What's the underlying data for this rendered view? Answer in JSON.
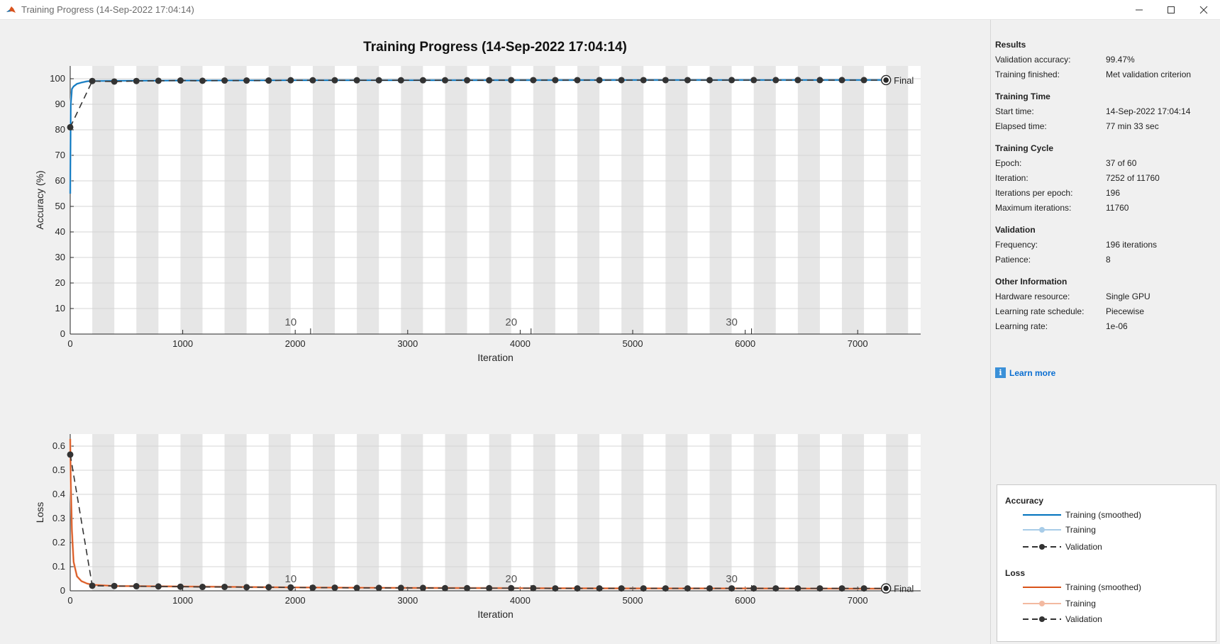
{
  "window": {
    "title": "Training Progress (14-Sep-2022 17:04:14)",
    "icon": "matlab-logo-icon"
  },
  "plot_title": "Training Progress (14-Sep-2022 17:04:14)",
  "results": {
    "heading": "Results",
    "rows": [
      {
        "label": "Validation accuracy:",
        "value": "99.47%"
      },
      {
        "label": "Training finished:",
        "value": "Met validation criterion"
      }
    ]
  },
  "training_time": {
    "heading": "Training Time",
    "rows": [
      {
        "label": "Start time:",
        "value": "14-Sep-2022 17:04:14"
      },
      {
        "label": "Elapsed time:",
        "value": "77 min 33 sec"
      }
    ]
  },
  "training_cycle": {
    "heading": "Training Cycle",
    "rows": [
      {
        "label": "Epoch:",
        "value": "37 of 60"
      },
      {
        "label": "Iteration:",
        "value": "7252 of 11760"
      },
      {
        "label": "Iterations per epoch:",
        "value": "196"
      },
      {
        "label": "Maximum iterations:",
        "value": "11760"
      }
    ]
  },
  "validation": {
    "heading": "Validation",
    "rows": [
      {
        "label": "Frequency:",
        "value": "196 iterations"
      },
      {
        "label": "Patience:",
        "value": "8"
      }
    ]
  },
  "other_info": {
    "heading": "Other Information",
    "rows": [
      {
        "label": "Hardware resource:",
        "value": "Single GPU"
      },
      {
        "label": "Learning rate schedule:",
        "value": "Piecewise"
      },
      {
        "label": "Learning rate:",
        "value": "1e-06"
      }
    ]
  },
  "learn_more": {
    "label": "Learn more",
    "icon": "info-icon"
  },
  "legend": {
    "accuracy": {
      "heading": "Accuracy",
      "items": [
        "Training (smoothed)",
        "Training",
        "Validation"
      ]
    },
    "loss": {
      "heading": "Loss",
      "items": [
        "Training (smoothed)",
        "Training",
        "Validation"
      ]
    }
  },
  "colors": {
    "accuracy_smoothed": "#0072bd",
    "accuracy_raw": "#a8cce8",
    "loss_smoothed": "#d95319",
    "loss_raw": "#f3b9a0",
    "validation": "#333333",
    "epoch_shade": "#e6e6e6"
  },
  "chart_data": [
    {
      "type": "line",
      "ylabel": "Accuracy (%)",
      "xlabel": "Iteration",
      "xlim": [
        0,
        7560
      ],
      "ylim": [
        0,
        105
      ],
      "xticks": [
        "0",
        "1000",
        "2000",
        "3000",
        "4000",
        "5000",
        "6000",
        "7000"
      ],
      "yticks": [
        "0",
        "10",
        "20",
        "30",
        "40",
        "50",
        "60",
        "70",
        "80",
        "90",
        "100"
      ],
      "epoch_labels": [
        "10",
        "20",
        "30"
      ],
      "iterations_per_epoch": 196,
      "final_label": "Final",
      "final": {
        "x": 7252,
        "y": 99.47
      },
      "series": [
        {
          "name": "Training (smoothed)",
          "x": [
            0,
            5,
            15,
            30,
            60,
            100,
            150,
            200,
            400,
            1000,
            2000,
            3000,
            4000,
            5000,
            6000,
            7000,
            7252
          ],
          "y": [
            55,
            90,
            96,
            97,
            98,
            98.5,
            99,
            99.1,
            99.2,
            99.3,
            99.4,
            99.4,
            99.45,
            99.5,
            99.5,
            99.5,
            99.5
          ]
        },
        {
          "name": "Validation",
          "x": [
            0,
            196,
            392,
            588,
            784,
            980,
            1176,
            1372,
            1568,
            1764,
            1960,
            2156,
            2352,
            2548,
            2744,
            2940,
            3136,
            3332,
            3528,
            3724,
            3920,
            4116,
            4312,
            4508,
            4704,
            4900,
            5096,
            5292,
            5488,
            5684,
            5880,
            6076,
            6272,
            6468,
            6664,
            6860,
            7056,
            7252
          ],
          "y": [
            81,
            99.1,
            98.9,
            99.1,
            99.2,
            99.3,
            99.2,
            99.3,
            99.3,
            99.3,
            99.4,
            99.4,
            99.4,
            99.4,
            99.4,
            99.4,
            99.4,
            99.4,
            99.4,
            99.4,
            99.45,
            99.45,
            99.45,
            99.45,
            99.45,
            99.45,
            99.45,
            99.45,
            99.45,
            99.45,
            99.47,
            99.47,
            99.47,
            99.47,
            99.47,
            99.47,
            99.47,
            99.47
          ]
        }
      ]
    },
    {
      "type": "line",
      "ylabel": "Loss",
      "xlabel": "Iteration",
      "xlim": [
        0,
        7560
      ],
      "ylim": [
        0,
        0.65
      ],
      "xticks": [
        "0",
        "1000",
        "2000",
        "3000",
        "4000",
        "5000",
        "6000",
        "7000"
      ],
      "yticks": [
        "0",
        "0.1",
        "0.2",
        "0.3",
        "0.4",
        "0.5",
        "0.6"
      ],
      "epoch_labels": [
        "10",
        "20",
        "30"
      ],
      "iterations_per_epoch": 196,
      "final_label": "Final",
      "final": {
        "x": 7252,
        "y": 0.01
      },
      "series": [
        {
          "name": "Training (smoothed)",
          "x": [
            0,
            5,
            15,
            30,
            60,
            100,
            150,
            200,
            400,
            1000,
            2000,
            3000,
            4000,
            5000,
            6000,
            7000,
            7252
          ],
          "y": [
            0.63,
            0.45,
            0.25,
            0.12,
            0.06,
            0.04,
            0.03,
            0.025,
            0.02,
            0.018,
            0.014,
            0.012,
            0.011,
            0.01,
            0.01,
            0.009,
            0.009
          ]
        },
        {
          "name": "Validation",
          "x": [
            0,
            196,
            392,
            588,
            784,
            980,
            1176,
            1372,
            1568,
            1764,
            1960,
            2156,
            2352,
            2548,
            2744,
            2940,
            3136,
            3332,
            3528,
            3724,
            3920,
            4116,
            4312,
            4508,
            4704,
            4900,
            5096,
            5292,
            5488,
            5684,
            5880,
            6076,
            6272,
            6468,
            6664,
            6860,
            7056,
            7252
          ],
          "y": [
            0.565,
            0.021,
            0.02,
            0.019,
            0.018,
            0.017,
            0.016,
            0.016,
            0.015,
            0.015,
            0.014,
            0.013,
            0.013,
            0.012,
            0.012,
            0.012,
            0.012,
            0.011,
            0.011,
            0.011,
            0.011,
            0.011,
            0.01,
            0.01,
            0.01,
            0.01,
            0.01,
            0.01,
            0.01,
            0.01,
            0.01,
            0.01,
            0.01,
            0.01,
            0.01,
            0.01,
            0.01,
            0.01
          ]
        }
      ]
    }
  ]
}
